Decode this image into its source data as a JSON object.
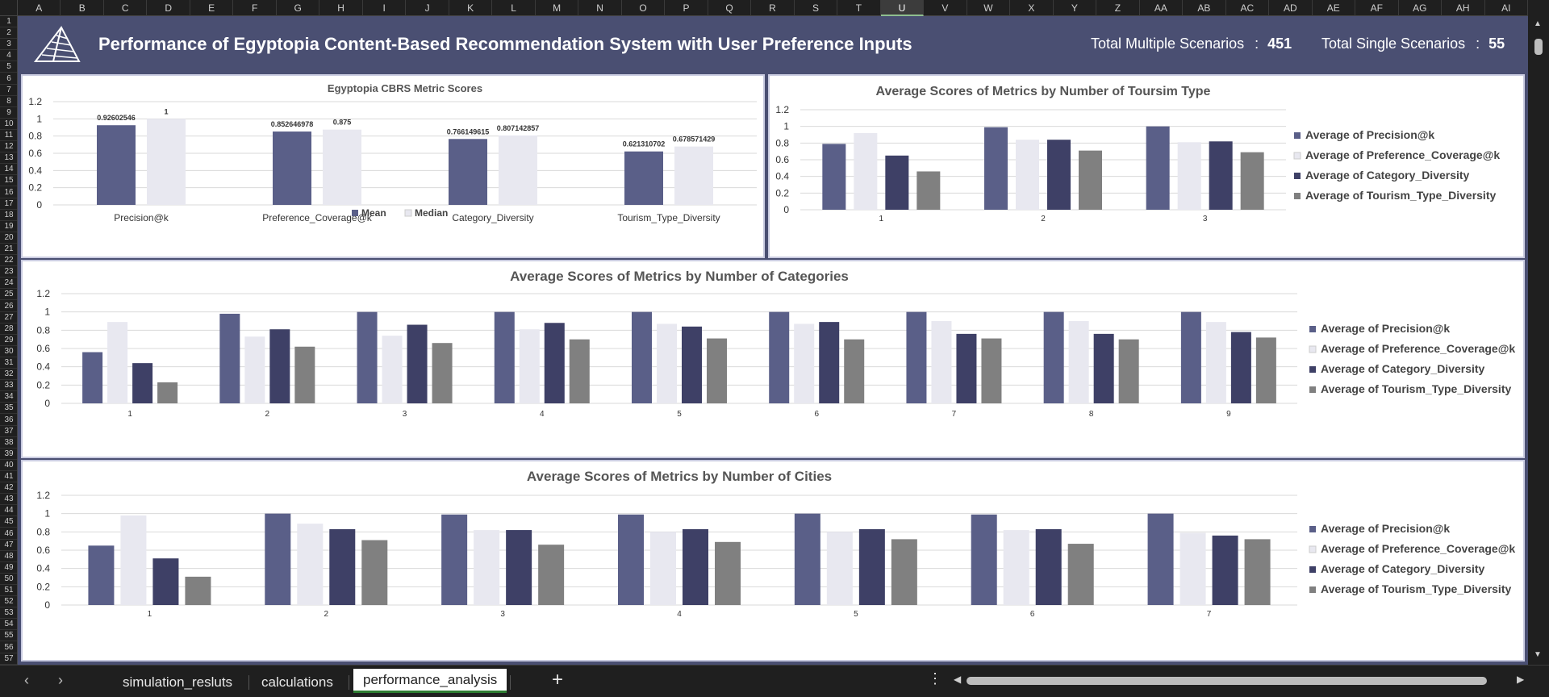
{
  "columns": [
    "A",
    "B",
    "C",
    "D",
    "E",
    "F",
    "G",
    "H",
    "I",
    "J",
    "K",
    "L",
    "M",
    "N",
    "O",
    "P",
    "Q",
    "R",
    "S",
    "T",
    "U",
    "V",
    "W",
    "X",
    "Y",
    "Z",
    "AA",
    "AB",
    "AC",
    "AD",
    "AE",
    "AF",
    "AG",
    "AH",
    "AI"
  ],
  "selected_column": "U",
  "rows": [
    "1",
    "2",
    "3",
    "4",
    "5",
    "6",
    "7",
    "8",
    "9",
    "10",
    "11",
    "12",
    "13",
    "14",
    "15",
    "16",
    "17",
    "18",
    "19",
    "20",
    "21",
    "22",
    "23",
    "24",
    "25",
    "26",
    "27",
    "28",
    "29",
    "30",
    "31",
    "32",
    "33",
    "34",
    "35",
    "36",
    "37",
    "38",
    "39",
    "40",
    "41",
    "42",
    "43",
    "44",
    "45",
    "46",
    "47",
    "48",
    "49",
    "50",
    "51",
    "52",
    "53",
    "54",
    "55",
    "56",
    "57"
  ],
  "header": {
    "title": "Performance of Egyptopia Content-Based Recommendation System with User Preference Inputs",
    "kpi_multiple_label": "Total Multiple Scenarios",
    "kpi_multiple_value": "451",
    "kpi_single_label": "Total Single Scenarios",
    "kpi_single_value": "55",
    "kpi_separator": ":"
  },
  "colors": {
    "mean": "#5a5f88",
    "median": "#e8e8f0",
    "precision": "#5a5f88",
    "coverage": "#e8e8f0",
    "category": "#3e4066",
    "tourism": "#808080",
    "gridline": "#d9d9d9"
  },
  "chart_data": [
    {
      "id": "metric-scores",
      "type": "bar",
      "title": "Egyptopia CBRS Metric Scores",
      "categories": [
        "Precision@k",
        "Preference_Coverage@k",
        "Category_Diversity",
        "Tourism_Type_Diversity"
      ],
      "series": [
        {
          "name": "Mean",
          "values": [
            0.92602546,
            0.852646978,
            0.766149615,
            0.621310702
          ],
          "labels": [
            "0.92602546",
            "0.852646978",
            "0.766149615",
            "0.621310702"
          ]
        },
        {
          "name": "Median",
          "values": [
            1,
            0.875,
            0.807142857,
            0.678571429
          ],
          "labels": [
            "1",
            "0.875",
            "0.807142857",
            "0.678571429"
          ]
        }
      ],
      "ylim": [
        0,
        1.2
      ],
      "yticks": [
        "0",
        "0.2",
        "0.4",
        "0.6",
        "0.8",
        "1",
        "1.2"
      ],
      "legend": "bottom"
    },
    {
      "id": "by-tourism-type",
      "type": "bar",
      "title": "Average Scores of Metrics by Number of Toursim Type",
      "categories": [
        "1",
        "2",
        "3"
      ],
      "series": [
        {
          "name": "Average of Precision@k",
          "values": [
            0.79,
            0.99,
            1.0
          ]
        },
        {
          "name": "Average of Preference_Coverage@k",
          "values": [
            0.92,
            0.84,
            0.81
          ]
        },
        {
          "name": "Average of Category_Diversity",
          "values": [
            0.65,
            0.84,
            0.82
          ]
        },
        {
          "name": "Average of Tourism_Type_Diversity",
          "values": [
            0.46,
            0.71,
            0.69
          ]
        }
      ],
      "ylim": [
        0,
        1.2
      ],
      "yticks": [
        "0",
        "0.2",
        "0.4",
        "0.6",
        "0.8",
        "1",
        "1.2"
      ],
      "legend": "right"
    },
    {
      "id": "by-categories",
      "type": "bar",
      "title": "Average Scores of Metrics by Number of Categories",
      "categories": [
        "1",
        "2",
        "3",
        "4",
        "5",
        "6",
        "7",
        "8",
        "9"
      ],
      "series": [
        {
          "name": "Average of Precision@k",
          "values": [
            0.56,
            0.98,
            1.0,
            1.0,
            1.0,
            1.0,
            1.0,
            1.0,
            1.0
          ]
        },
        {
          "name": "Average of Preference_Coverage@k",
          "values": [
            0.89,
            0.73,
            0.74,
            0.81,
            0.87,
            0.87,
            0.9,
            0.9,
            0.89
          ]
        },
        {
          "name": "Average of Category_Diversity",
          "values": [
            0.44,
            0.81,
            0.86,
            0.88,
            0.84,
            0.89,
            0.76,
            0.76,
            0.78
          ]
        },
        {
          "name": "Average of Tourism_Type_Diversity",
          "values": [
            0.23,
            0.62,
            0.66,
            0.7,
            0.71,
            0.7,
            0.71,
            0.7,
            0.72
          ]
        }
      ],
      "ylim": [
        0,
        1.2
      ],
      "yticks": [
        "0",
        "0.2",
        "0.4",
        "0.6",
        "0.8",
        "1",
        "1.2"
      ],
      "legend": "right"
    },
    {
      "id": "by-cities",
      "type": "bar",
      "title": "Average Scores of Metrics by Number of Cities",
      "categories": [
        "1",
        "2",
        "3",
        "4",
        "5",
        "6",
        "7"
      ],
      "series": [
        {
          "name": "Average of Precision@k",
          "values": [
            0.65,
            1.0,
            0.99,
            0.99,
            1.0,
            0.99,
            1.0
          ]
        },
        {
          "name": "Average of Preference_Coverage@k",
          "values": [
            0.98,
            0.89,
            0.82,
            0.8,
            0.8,
            0.82,
            0.79
          ]
        },
        {
          "name": "Average of Category_Diversity",
          "values": [
            0.51,
            0.83,
            0.82,
            0.83,
            0.83,
            0.83,
            0.76
          ]
        },
        {
          "name": "Average of Tourism_Type_Diversity",
          "values": [
            0.31,
            0.71,
            0.66,
            0.69,
            0.72,
            0.67,
            0.72
          ]
        }
      ],
      "ylim": [
        0,
        1.2
      ],
      "yticks": [
        "0",
        "0.2",
        "0.4",
        "0.6",
        "0.8",
        "1",
        "1.2"
      ],
      "legend": "right"
    }
  ],
  "sheets": {
    "tabs": [
      "simulation_resluts",
      "calculations",
      "performance_analysis"
    ],
    "active": "performance_analysis",
    "add_icon": "+",
    "more_icon": "⋮",
    "prev_icon": "‹",
    "next_icon": "›"
  }
}
